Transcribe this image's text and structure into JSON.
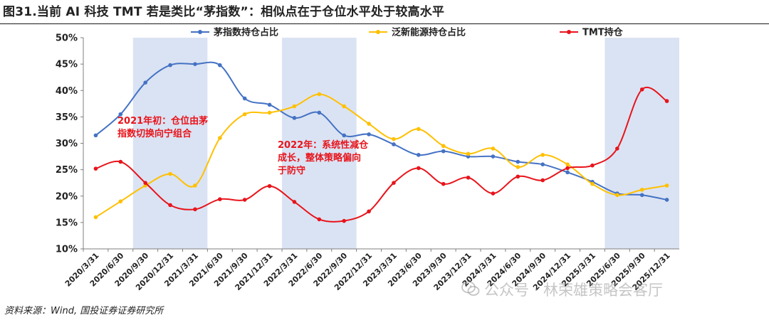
{
  "figure": {
    "title": "图31.当前 AI 科技 TMT 若是类比“茅指数”：相似点在于仓位水平处于较高水平",
    "source": "资料来源：Wind, 国投证券证券研究所",
    "watermark": "公众号 · 林荣雄策略会客厅"
  },
  "chart_data": {
    "type": "line",
    "categories": [
      "2020/3/31",
      "2020/6/30",
      "2020/9/30",
      "2020/12/31",
      "2021/3/31",
      "2021/6/30",
      "2021/9/30",
      "2021/12/31",
      "2022/3/31",
      "2022/6/30",
      "2022/9/30",
      "2022/12/31",
      "2023/3/31",
      "2023/6/30",
      "2023/9/30",
      "2023/12/31",
      "2024/3/31",
      "2024/6/30",
      "2024/9/30",
      "2024/12/31",
      "2025/3/31",
      "2025/6/30",
      "2025/9/30",
      "2025/12/31"
    ],
    "series": [
      {
        "name": "茅指数持仓占比",
        "color": "#4472c4",
        "values": [
          31.5,
          35.5,
          41.5,
          44.8,
          45.0,
          44.8,
          38.5,
          37.3,
          34.8,
          35.8,
          31.5,
          31.7,
          29.8,
          27.8,
          28.5,
          27.5,
          27.5,
          26.5,
          26.0,
          24.5,
          22.7,
          20.5,
          20.2,
          19.3
        ]
      },
      {
        "name": "泛新能源持仓占比",
        "color": "#ffc000",
        "values": [
          16.0,
          19.0,
          22.0,
          24.2,
          22.0,
          31.0,
          35.5,
          35.8,
          37.0,
          39.3,
          37.0,
          33.7,
          30.8,
          32.7,
          29.5,
          28.0,
          29.0,
          25.5,
          27.8,
          26.0,
          22.3,
          20.2,
          21.2,
          22.0
        ]
      },
      {
        "name": "TMT持仓",
        "color": "#e8141b",
        "values": [
          25.2,
          26.5,
          22.5,
          18.3,
          17.5,
          19.4,
          19.3,
          21.9,
          18.9,
          15.6,
          15.3,
          17.1,
          22.5,
          25.3,
          22.3,
          23.5,
          20.5,
          23.7,
          23.0,
          25.3,
          25.8,
          29.0,
          40.2,
          38.0
        ]
      }
    ],
    "ylim": [
      10,
      50
    ],
    "yticks": [
      10,
      15,
      20,
      25,
      30,
      35,
      40,
      45,
      50
    ],
    "ytick_suffix": "%",
    "shaded_ranges": [
      [
        2,
        4
      ],
      [
        8,
        10
      ],
      [
        21,
        23
      ]
    ],
    "shade_color": "#dae3f3",
    "grid": false,
    "legend": "top",
    "annotations": [
      {
        "lines": [
          "2021年初：仓位由茅",
          "指数切换向宁组合"
        ],
        "x_category": 1,
        "y_value": 35.5
      },
      {
        "lines": [
          "2022年：系统性减仓",
          "成长，整体策略偏向",
          "于防守"
        ],
        "x_category": 8,
        "y_value": 29.5
      }
    ]
  }
}
